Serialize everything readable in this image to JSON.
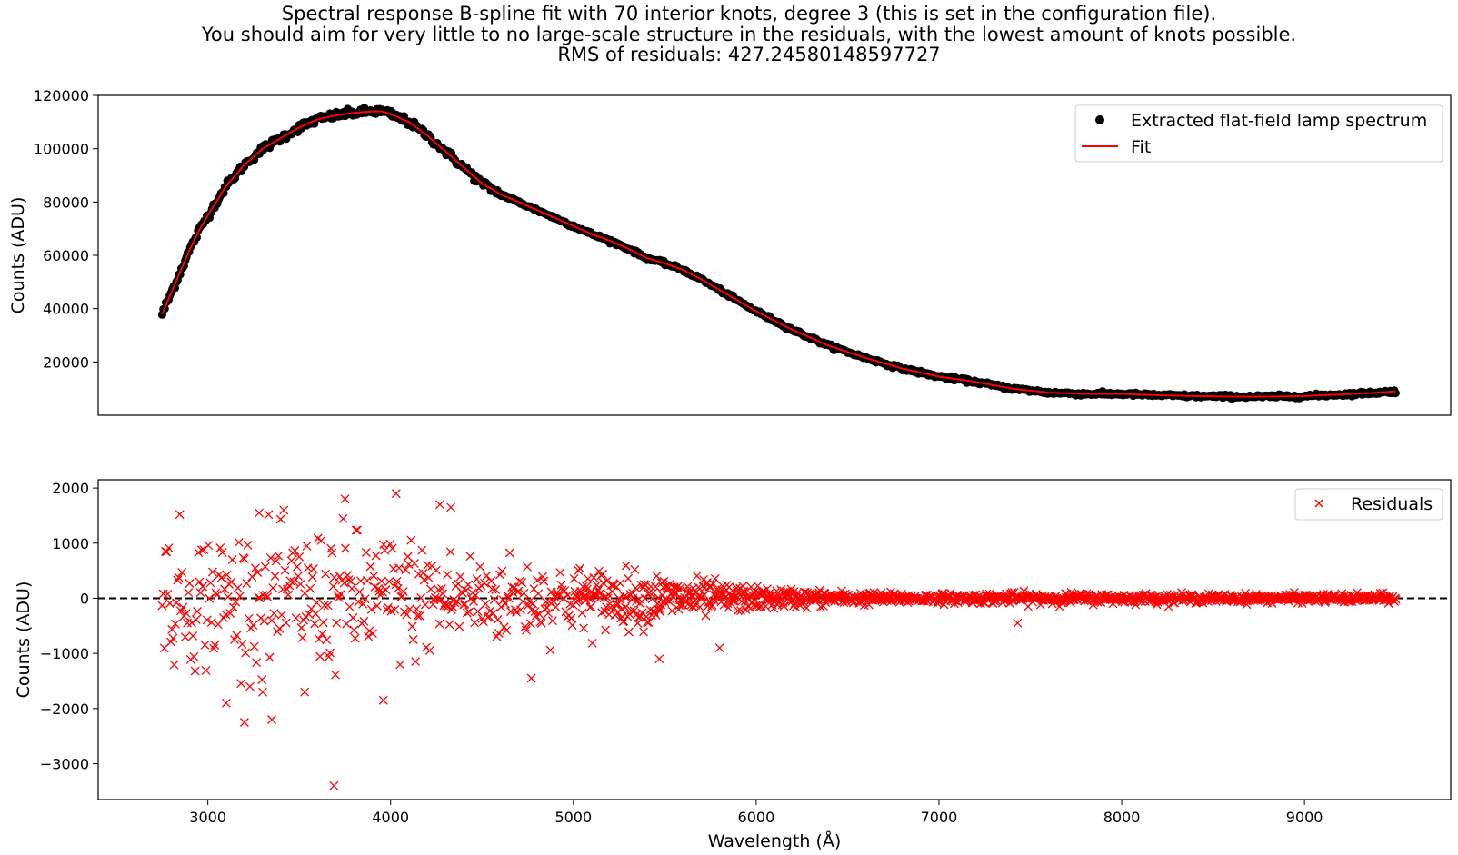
{
  "figure": {
    "title_lines": [
      "Spectral response B-spline fit with 70 interior knots, degree 3 (this is set in the configuration file).",
      "You should aim for very little to no large-scale structure in the residuals, with the lowest amount of knots possible.",
      "RMS of residuals: 427.24580148597727"
    ]
  },
  "chart_data": [
    {
      "type": "scatter",
      "panel": "top",
      "ylabel": "Counts (ADU)",
      "xlabel": "",
      "xlim": [
        2400,
        9800
      ],
      "ylim": [
        0,
        120000
      ],
      "yticks": [
        20000,
        40000,
        60000,
        80000,
        100000,
        120000
      ],
      "ytick_labels": [
        "20000",
        "40000",
        "60000",
        "80000",
        "100000",
        "120000"
      ],
      "x_tick_labels_shown": false,
      "legend": {
        "placement": "top-right",
        "entries": [
          "Extracted flat-field lamp spectrum",
          "Fit"
        ]
      },
      "series": [
        {
          "name": "Extracted flat-field lamp spectrum",
          "kind": "points",
          "color": "#000000",
          "x": [
            2750,
            2800,
            2850,
            2900,
            2950,
            3000,
            3100,
            3200,
            3300,
            3400,
            3500,
            3600,
            3700,
            3800,
            3900,
            3950,
            4000,
            4100,
            4200,
            4300,
            4400,
            4500,
            4600,
            4700,
            4800,
            4900,
            5000,
            5100,
            5200,
            5300,
            5400,
            5500,
            5600,
            5700,
            5800,
            5900,
            6000,
            6200,
            6400,
            6600,
            6800,
            7000,
            7200,
            7400,
            7600,
            7800,
            8000,
            8200,
            8400,
            8600,
            8800,
            9000,
            9200,
            9400,
            9500
          ],
          "y": [
            38000,
            46000,
            54000,
            62000,
            69000,
            75000,
            86000,
            94000,
            100000,
            104000,
            108000,
            111000,
            112500,
            113500,
            114000,
            114000,
            113000,
            110000,
            105000,
            99000,
            93000,
            87000,
            83000,
            80000,
            77000,
            74000,
            71000,
            68000,
            65500,
            62500,
            59000,
            57000,
            54500,
            51000,
            47000,
            43000,
            39000,
            32000,
            26000,
            21500,
            17500,
            14500,
            12500,
            10000,
            8500,
            8000,
            8000,
            7500,
            7200,
            7000,
            7000,
            7200,
            7800,
            8500,
            9000
          ]
        },
        {
          "name": "Fit",
          "kind": "line",
          "color": "#ff0000",
          "x": [
            2750,
            2800,
            2850,
            2900,
            2950,
            3000,
            3100,
            3200,
            3300,
            3400,
            3500,
            3600,
            3700,
            3800,
            3900,
            3950,
            4000,
            4100,
            4200,
            4300,
            4400,
            4500,
            4600,
            4700,
            4800,
            4900,
            5000,
            5100,
            5200,
            5300,
            5400,
            5500,
            5600,
            5700,
            5800,
            5900,
            6000,
            6200,
            6400,
            6600,
            6800,
            7000,
            7200,
            7400,
            7600,
            7800,
            8000,
            8200,
            8400,
            8600,
            8800,
            9000,
            9200,
            9400,
            9500
          ],
          "y": [
            38000,
            46000,
            54000,
            62000,
            69000,
            75000,
            86000,
            94000,
            100000,
            104000,
            108000,
            111000,
            112500,
            113500,
            114000,
            114000,
            113000,
            110000,
            105000,
            99000,
            93000,
            87000,
            83000,
            80000,
            77000,
            74000,
            71000,
            68000,
            65500,
            62500,
            59000,
            57000,
            54500,
            51000,
            47000,
            43000,
            39000,
            32000,
            26000,
            21500,
            17500,
            14500,
            12500,
            10000,
            8500,
            8000,
            8000,
            7500,
            7200,
            7000,
            7000,
            7200,
            7800,
            8500,
            9000
          ]
        }
      ]
    },
    {
      "type": "scatter",
      "panel": "bottom",
      "ylabel": "Counts (ADU)",
      "xlabel": "Wavelength (Å)",
      "xlim": [
        2400,
        9800
      ],
      "ylim": [
        -3650,
        2150
      ],
      "xticks": [
        3000,
        4000,
        5000,
        6000,
        7000,
        8000,
        9000
      ],
      "xtick_labels": [
        "3000",
        "4000",
        "5000",
        "6000",
        "7000",
        "8000",
        "9000"
      ],
      "yticks": [
        -3000,
        -2000,
        -1000,
        0,
        1000,
        2000
      ],
      "ytick_labels": [
        "−3000",
        "−2000",
        "−1000",
        "0",
        "1000",
        "2000"
      ],
      "zero_line": {
        "y": 0,
        "style": "dashed",
        "color": "#000000"
      },
      "legend": {
        "placement": "top-right",
        "entries": [
          "Residuals"
        ]
      },
      "series": [
        {
          "name": "Residuals",
          "marker": "x",
          "color": "#ff0000",
          "envelope": {
            "x": [
              2750,
              3000,
              3500,
              4000,
              4500,
              5000,
              5500,
              6000,
              6500,
              7000,
              7500,
              8000,
              8500,
              9000,
              9500
            ],
            "amplitude": [
              750,
              750,
              750,
              700,
              500,
              350,
              250,
              120,
              70,
              50,
              60,
              50,
              45,
              45,
              45
            ]
          },
          "outliers": [
            {
              "x": 3690,
              "y": -3400
            },
            {
              "x": 3200,
              "y": -2250
            },
            {
              "x": 3350,
              "y": -2200
            },
            {
              "x": 3100,
              "y": -1900
            },
            {
              "x": 3960,
              "y": -1850
            },
            {
              "x": 3300,
              "y": -1700
            },
            {
              "x": 3530,
              "y": -1700
            },
            {
              "x": 4770,
              "y": -1450
            },
            {
              "x": 5470,
              "y": -1100
            },
            {
              "x": 5800,
              "y": -900
            },
            {
              "x": 7430,
              "y": -450
            },
            {
              "x": 4030,
              "y": 1900
            },
            {
              "x": 4270,
              "y": 1700
            },
            {
              "x": 3750,
              "y": 1800
            },
            {
              "x": 4330,
              "y": 1650
            },
            {
              "x": 3280,
              "y": 1550
            }
          ]
        }
      ]
    }
  ]
}
